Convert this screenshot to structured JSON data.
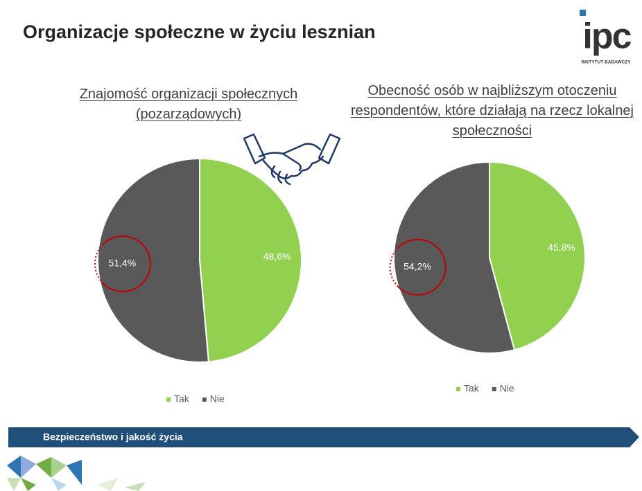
{
  "title": "Organizacje społeczne w życiu lesznian",
  "logo": {
    "name": "ipc",
    "caption": "INSTYTUT BADAWCZY"
  },
  "footer": "Bezpieczeństwo i jakość życia",
  "chart_data": [
    {
      "type": "pie",
      "title": "Znajomość organizacji społecznych (pozarządowych)",
      "categories": [
        "Tak",
        "Nie"
      ],
      "values": [
        48.6,
        51.4
      ],
      "value_labels": [
        "48,6%",
        "51,4%"
      ],
      "colors": [
        "#92d050",
        "#595959"
      ],
      "legend": "bottom"
    },
    {
      "type": "pie",
      "title": "Obecność osób w najbliższym otoczeniu respondentów, które działają na rzecz lokalnej społeczności",
      "categories": [
        "Tak",
        "Nie"
      ],
      "values": [
        45.8,
        54.2
      ],
      "value_labels": [
        "45,8%",
        "54,2%"
      ],
      "colors": [
        "#92d050",
        "#595959"
      ],
      "legend": "bottom"
    }
  ]
}
